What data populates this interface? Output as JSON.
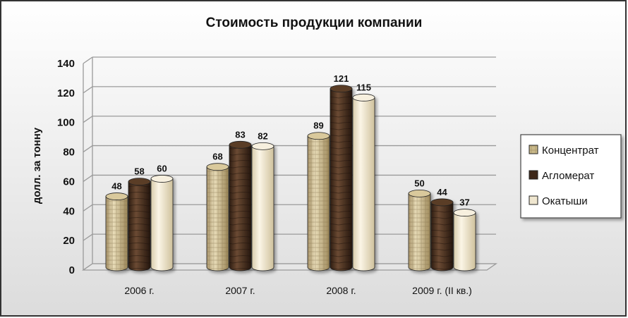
{
  "chart_data": {
    "type": "bar",
    "title": "Стоимость продукции компании",
    "ylabel": "долл. за тонну",
    "xlabel": "",
    "categories": [
      "2006 г.",
      "2007 г.",
      "2008 г.",
      "2009 г. (II кв.)"
    ],
    "ylim": [
      0,
      140
    ],
    "yticks": [
      0,
      20,
      40,
      60,
      80,
      100,
      120,
      140
    ],
    "grid": true,
    "legend_position": "right",
    "series": [
      {
        "name": "Концентрат",
        "values": [
          48,
          68,
          89,
          50
        ],
        "color": "#c9b98a"
      },
      {
        "name": "Агломерат",
        "values": [
          58,
          83,
          121,
          44
        ],
        "color": "#4a3122"
      },
      {
        "name": "Окатыши",
        "values": [
          60,
          82,
          115,
          37
        ],
        "color": "#efe6cf"
      }
    ]
  }
}
